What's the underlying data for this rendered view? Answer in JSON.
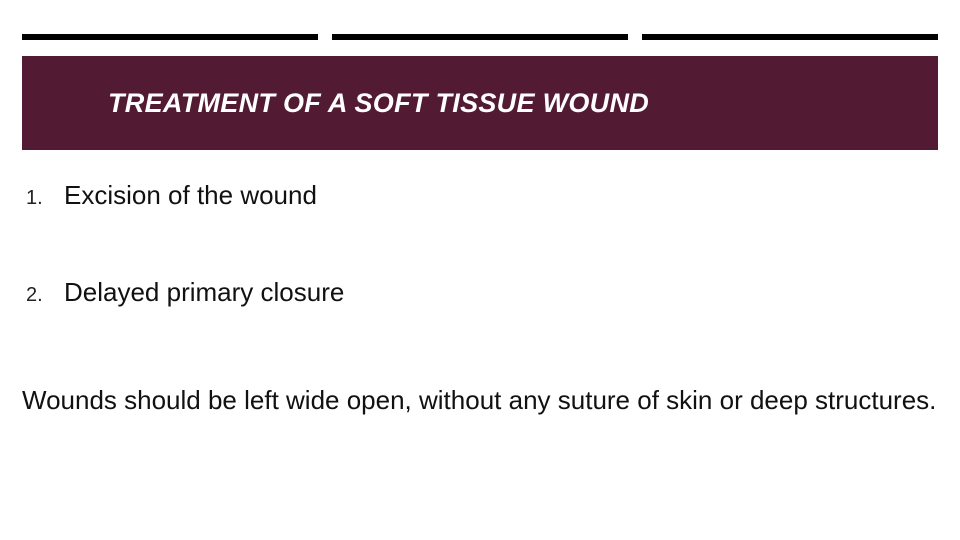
{
  "slide": {
    "title": "TREATMENT OF A SOFT TISSUE WOUND",
    "title_band_color": "#531a33",
    "title_text_color": "#ffffff",
    "dash_color": "#000000",
    "list": [
      {
        "num": "1.",
        "text": "Excision of the wound"
      },
      {
        "num": "2.",
        "text": "Delayed primary closure"
      }
    ],
    "body": "Wounds should be left wide open, without any suture of skin  or deep structures.",
    "body_color": "#111111",
    "list_num_fontsize": 20,
    "list_text_fontsize": 26,
    "title_fontsize": 27,
    "body_fontsize": 26
  }
}
